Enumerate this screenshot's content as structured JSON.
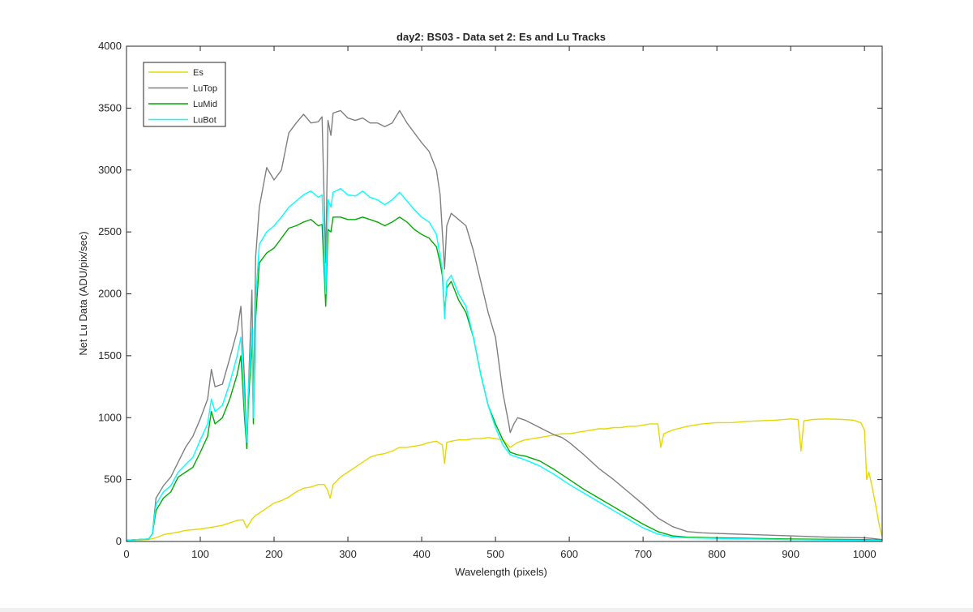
{
  "chart_data": {
    "type": "line",
    "title": "day2: BS03 - Data set 2: Es and Lu Tracks",
    "xlabel": "Wavelength (pixels)",
    "ylabel": "Net Lu Data (ADU/pix/sec)",
    "xlim": [
      0,
      1024
    ],
    "ylim": [
      0,
      4000
    ],
    "xticks": [
      0,
      100,
      200,
      300,
      400,
      500,
      600,
      700,
      800,
      900,
      1000
    ],
    "yticks": [
      0,
      500,
      1000,
      1500,
      2000,
      2500,
      3000,
      3500,
      4000
    ],
    "grid": false,
    "legend_position": "top-left",
    "series": [
      {
        "name": "Es",
        "color": "#e6d800",
        "x": [
          0,
          30,
          40,
          50,
          60,
          70,
          80,
          90,
          100,
          110,
          120,
          130,
          140,
          150,
          158,
          163,
          170,
          175,
          180,
          190,
          200,
          210,
          220,
          230,
          240,
          250,
          260,
          268,
          272,
          276,
          280,
          290,
          300,
          310,
          320,
          330,
          340,
          350,
          360,
          370,
          380,
          390,
          400,
          410,
          420,
          428,
          431,
          434,
          440,
          450,
          460,
          470,
          480,
          490,
          500,
          510,
          520,
          530,
          540,
          550,
          560,
          570,
          580,
          590,
          600,
          610,
          620,
          630,
          640,
          650,
          660,
          670,
          680,
          690,
          700,
          710,
          720,
          724,
          728,
          740,
          760,
          780,
          800,
          820,
          840,
          860,
          880,
          900,
          910,
          914,
          918,
          930,
          950,
          970,
          985,
          995,
          1000,
          1003,
          1006,
          1010,
          1015,
          1020,
          1024
        ],
        "y": [
          10,
          15,
          30,
          55,
          65,
          75,
          90,
          95,
          100,
          110,
          120,
          130,
          150,
          170,
          175,
          110,
          180,
          210,
          230,
          270,
          310,
          330,
          360,
          400,
          430,
          440,
          460,
          460,
          420,
          350,
          460,
          520,
          560,
          600,
          640,
          680,
          700,
          710,
          730,
          760,
          760,
          770,
          780,
          800,
          810,
          780,
          630,
          800,
          810,
          820,
          820,
          830,
          830,
          840,
          830,
          820,
          760,
          800,
          820,
          830,
          840,
          850,
          860,
          870,
          870,
          880,
          890,
          900,
          910,
          910,
          920,
          920,
          930,
          930,
          940,
          950,
          950,
          760,
          870,
          900,
          930,
          950,
          960,
          960,
          970,
          975,
          980,
          990,
          985,
          730,
          975,
          985,
          990,
          985,
          980,
          960,
          900,
          500,
          560,
          450,
          300,
          130,
          40
        ]
      },
      {
        "name": "LuTop",
        "color": "#808080",
        "x": [
          0,
          30,
          35,
          40,
          50,
          60,
          70,
          80,
          90,
          100,
          110,
          115,
          120,
          130,
          140,
          150,
          155,
          160,
          163,
          165,
          170,
          172,
          175,
          180,
          190,
          200,
          210,
          220,
          230,
          240,
          250,
          260,
          265,
          270,
          273,
          277,
          280,
          290,
          300,
          310,
          320,
          330,
          340,
          350,
          360,
          370,
          380,
          390,
          400,
          410,
          420,
          425,
          428,
          431,
          434,
          440,
          450,
          460,
          470,
          480,
          490,
          500,
          510,
          518,
          520,
          525,
          530,
          540,
          550,
          560,
          570,
          580,
          590,
          600,
          620,
          640,
          660,
          680,
          700,
          720,
          740,
          760,
          780,
          800,
          850,
          900,
          950,
          1000,
          1010,
          1024
        ],
        "y": [
          10,
          20,
          60,
          350,
          450,
          520,
          640,
          760,
          850,
          990,
          1150,
          1390,
          1250,
          1270,
          1480,
          1700,
          1900,
          1300,
          750,
          1200,
          2030,
          1050,
          2300,
          2700,
          3020,
          2920,
          3000,
          3300,
          3380,
          3450,
          3380,
          3390,
          3430,
          2250,
          3400,
          3280,
          3460,
          3480,
          3420,
          3400,
          3420,
          3380,
          3380,
          3350,
          3380,
          3480,
          3380,
          3300,
          3220,
          3150,
          3000,
          2800,
          2500,
          2200,
          2550,
          2650,
          2600,
          2550,
          2350,
          2100,
          1850,
          1650,
          1200,
          950,
          880,
          950,
          1000,
          980,
          950,
          920,
          890,
          860,
          840,
          800,
          700,
          590,
          500,
          400,
          300,
          190,
          120,
          80,
          70,
          65,
          55,
          45,
          35,
          30,
          25,
          15
        ]
      },
      {
        "name": "LuMid",
        "color": "#00aa00",
        "x": [
          0,
          30,
          35,
          40,
          50,
          60,
          70,
          80,
          90,
          100,
          110,
          115,
          120,
          130,
          140,
          150,
          155,
          160,
          163,
          165,
          170,
          172,
          175,
          180,
          190,
          200,
          210,
          220,
          230,
          240,
          250,
          260,
          265,
          270,
          273,
          277,
          280,
          290,
          300,
          310,
          320,
          330,
          340,
          350,
          360,
          370,
          380,
          390,
          400,
          410,
          420,
          425,
          428,
          431,
          434,
          440,
          450,
          460,
          470,
          480,
          490,
          500,
          510,
          520,
          530,
          540,
          560,
          580,
          600,
          620,
          640,
          660,
          680,
          700,
          720,
          740,
          760,
          800,
          850,
          900,
          950,
          1000,
          1024
        ],
        "y": [
          10,
          20,
          60,
          250,
          350,
          400,
          520,
          560,
          600,
          720,
          850,
          1050,
          950,
          1000,
          1150,
          1350,
          1500,
          1000,
          750,
          1100,
          1620,
          950,
          1800,
          2250,
          2330,
          2370,
          2450,
          2530,
          2550,
          2580,
          2600,
          2550,
          2560,
          1900,
          2520,
          2500,
          2620,
          2620,
          2600,
          2600,
          2620,
          2600,
          2580,
          2550,
          2580,
          2620,
          2580,
          2520,
          2480,
          2450,
          2380,
          2250,
          2150,
          1850,
          2050,
          2100,
          1950,
          1850,
          1650,
          1350,
          1100,
          950,
          820,
          720,
          700,
          690,
          650,
          580,
          500,
          420,
          350,
          280,
          210,
          140,
          80,
          45,
          35,
          30,
          25,
          20,
          18,
          15,
          10
        ]
      },
      {
        "name": "LuBot",
        "color": "#00ffff",
        "x": [
          0,
          30,
          35,
          40,
          50,
          60,
          70,
          80,
          90,
          100,
          110,
          115,
          120,
          130,
          140,
          150,
          155,
          160,
          163,
          165,
          170,
          172,
          175,
          180,
          190,
          200,
          210,
          220,
          230,
          240,
          250,
          260,
          265,
          270,
          273,
          277,
          280,
          290,
          300,
          310,
          320,
          330,
          340,
          350,
          360,
          370,
          380,
          390,
          400,
          410,
          420,
          425,
          428,
          431,
          434,
          440,
          450,
          460,
          470,
          480,
          490,
          500,
          510,
          520,
          530,
          540,
          560,
          580,
          600,
          620,
          640,
          660,
          680,
          700,
          720,
          740,
          760,
          800,
          850,
          900,
          950,
          1000,
          1024
        ],
        "y": [
          10,
          20,
          60,
          300,
          400,
          450,
          560,
          620,
          680,
          820,
          950,
          1150,
          1050,
          1100,
          1280,
          1500,
          1650,
          1100,
          800,
          1200,
          1720,
          1000,
          1950,
          2400,
          2500,
          2550,
          2620,
          2700,
          2750,
          2800,
          2830,
          2780,
          2800,
          2000,
          2760,
          2700,
          2820,
          2850,
          2800,
          2790,
          2830,
          2780,
          2760,
          2720,
          2760,
          2820,
          2750,
          2680,
          2620,
          2580,
          2480,
          2300,
          2200,
          1800,
          2100,
          2150,
          2000,
          1900,
          1650,
          1350,
          1100,
          920,
          780,
          700,
          680,
          660,
          610,
          540,
          460,
          390,
          320,
          250,
          180,
          110,
          60,
          35,
          30,
          25,
          20,
          15,
          12,
          10,
          8
        ]
      }
    ]
  }
}
